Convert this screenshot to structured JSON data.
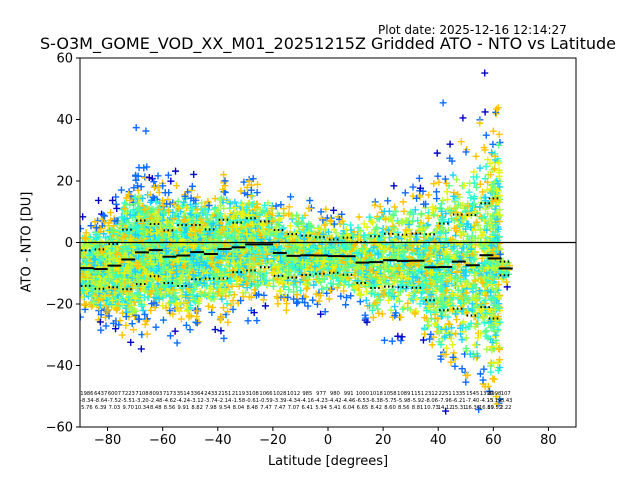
{
  "plot_date": "Plot date: 2025-12-16 12:14:27",
  "chart_data": {
    "type": "scatter",
    "title": "S-O3M_GOME_VOD_XX_M01_20251215Z Gridded ATO - NTO vs Latitude",
    "xlabel": "Latitude [degrees]",
    "ylabel": "ATO - NTO [DU]",
    "xlim": [
      -90,
      90
    ],
    "ylim": [
      -60,
      60
    ],
    "xticks": [
      -80,
      -60,
      -40,
      -20,
      0,
      20,
      40,
      60,
      80
    ],
    "yticks": [
      -60,
      -40,
      -20,
      0,
      20,
      40,
      60
    ],
    "grid": false,
    "zero_line": 0,
    "marker": "+",
    "colormap": [
      "#0000c8",
      "#0d6bff",
      "#1ad1ff",
      "#2effd0",
      "#5cff88",
      "#a8ff4a",
      "#e6f511",
      "#ffc400"
    ],
    "bins": [
      {
        "lat": -87.5,
        "count": 1986,
        "mean": -8.34,
        "std": 5.76
      },
      {
        "lat": -82.5,
        "count": 6437,
        "mean": -8.64,
        "std": 6.39
      },
      {
        "lat": -77.5,
        "count": 6007,
        "mean": -7.52,
        "std": 7.03
      },
      {
        "lat": -72.5,
        "count": 7223,
        "mean": -5.51,
        "std": 9.7
      },
      {
        "lat": -67.5,
        "count": 7108,
        "mean": -3.2,
        "std": 10.34
      },
      {
        "lat": -62.5,
        "count": 8093,
        "mean": -2.48,
        "std": 8.48
      },
      {
        "lat": -57.5,
        "count": 7173,
        "mean": -4.62,
        "std": 8.56
      },
      {
        "lat": -52.5,
        "count": 3514,
        "mean": -4.24,
        "std": 9.91
      },
      {
        "lat": -47.5,
        "count": 3364,
        "mean": -3.12,
        "std": 8.82
      },
      {
        "lat": -42.5,
        "count": 2433,
        "mean": -3.74,
        "std": 7.98
      },
      {
        "lat": -37.5,
        "count": 2151,
        "mean": -2.14,
        "std": 9.54
      },
      {
        "lat": -32.5,
        "count": 2119,
        "mean": -1.58,
        "std": 8.04
      },
      {
        "lat": -27.5,
        "count": 3108,
        "mean": -0.61,
        "std": 8.48
      },
      {
        "lat": -22.5,
        "count": 1066,
        "mean": -0.59,
        "std": 7.47
      },
      {
        "lat": -17.5,
        "count": 1028,
        "mean": -3.39,
        "std": 7.47
      },
      {
        "lat": -12.5,
        "count": 1012,
        "mean": -4.34,
        "std": 7.07
      },
      {
        "lat": -7.5,
        "count": 985,
        "mean": -4.16,
        "std": 6.41
      },
      {
        "lat": -2.5,
        "count": 977,
        "mean": -4.23,
        "std": 5.94
      },
      {
        "lat": 2.5,
        "count": 980,
        "mean": -4.42,
        "std": 5.41
      },
      {
        "lat": 7.5,
        "count": 991,
        "mean": -4.46,
        "std": 6.04
      },
      {
        "lat": 12.5,
        "count": 1000,
        "mean": -6.53,
        "std": 6.65
      },
      {
        "lat": 17.5,
        "count": 1018,
        "mean": -6.38,
        "std": 8.42
      },
      {
        "lat": 22.5,
        "count": 1058,
        "mean": -5.75,
        "std": 8.6
      },
      {
        "lat": 27.5,
        "count": 1089,
        "mean": -5.98,
        "std": 8.56
      },
      {
        "lat": 32.5,
        "count": 1151,
        "mean": -5.92,
        "std": 8.81
      },
      {
        "lat": 37.5,
        "count": 2312,
        "mean": -8.06,
        "std": 10.73
      },
      {
        "lat": 42.5,
        "count": 2251,
        "mean": -7.96,
        "std": 14.12
      },
      {
        "lat": 47.5,
        "count": 1335,
        "mean": -6.21,
        "std": 15.31
      },
      {
        "lat": 52.5,
        "count": 1545,
        "mean": -7.4,
        "std": 16.36
      },
      {
        "lat": 57.5,
        "count": 1399,
        "mean": -4.13,
        "std": 16.89
      },
      {
        "lat": 60.5,
        "count": 3998,
        "mean": -5.19,
        "std": 19.52
      },
      {
        "lat": 64.5,
        "count": 107,
        "mean": -8.43,
        "std": 2.22
      }
    ]
  }
}
